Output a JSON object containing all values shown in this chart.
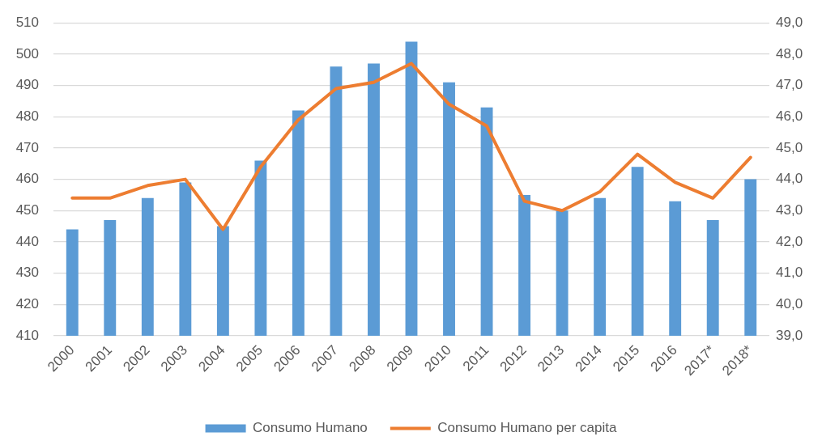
{
  "chart_data": {
    "type": "bar",
    "categories": [
      "2000",
      "2001",
      "2002",
      "2003",
      "2004",
      "2005",
      "2006",
      "2007",
      "2008",
      "2009",
      "2010",
      "2011",
      "2012",
      "2013",
      "2014",
      "2015",
      "2016",
      "2017*",
      "2018*"
    ],
    "series": [
      {
        "name": "Consumo Humano",
        "color": "#5b9bd5",
        "values": [
          444,
          447,
          454,
          459,
          445,
          466,
          482,
          496,
          497,
          504,
          491,
          483,
          455,
          450,
          454,
          464,
          453,
          447,
          460
        ]
      },
      {
        "name": "Consumo Humano per capita",
        "type": "line",
        "axis": "y2",
        "color": "#ed7d31",
        "values": [
          43.4,
          43.4,
          43.8,
          44.0,
          42.4,
          44.4,
          45.9,
          46.9,
          47.1,
          47.7,
          46.4,
          45.7,
          43.3,
          43.0,
          43.6,
          44.8,
          43.9,
          43.4,
          44.7
        ]
      }
    ],
    "ylim": [
      410,
      510
    ],
    "yticks": [
      410,
      420,
      430,
      440,
      450,
      460,
      470,
      480,
      490,
      500,
      510
    ],
    "y2lim": [
      39,
      49
    ],
    "y2ticks": [
      {
        "value": 39,
        "label": "39,0"
      },
      {
        "value": 40,
        "label": "40,0"
      },
      {
        "value": 41,
        "label": "41,0"
      },
      {
        "value": 42,
        "label": "42,0"
      },
      {
        "value": 43,
        "label": "43,0"
      },
      {
        "value": 44,
        "label": "44,0"
      },
      {
        "value": 45,
        "label": "45,0"
      },
      {
        "value": 46,
        "label": "46,0"
      },
      {
        "value": 47,
        "label": "47,0"
      },
      {
        "value": 48,
        "label": "48,0"
      },
      {
        "value": 49,
        "label": "49,0"
      }
    ],
    "grid": "y",
    "legend": "bottom",
    "marker": "none"
  }
}
